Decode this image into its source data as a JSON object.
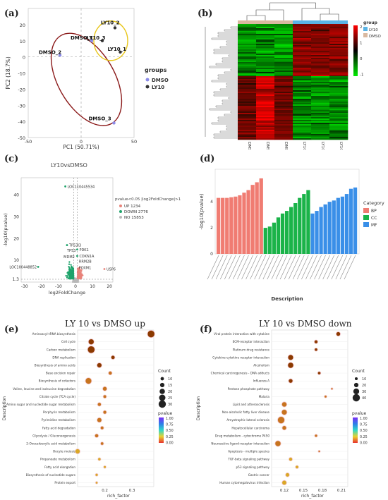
{
  "panels": {
    "a": {
      "label": "(a)",
      "xlabel": "PC1 (50.71%)",
      "ylabel": "PC2 (18.7%)",
      "legend_title": "groups",
      "legend_items": [
        {
          "name": "DMSO",
          "color": "#8b8be8"
        },
        {
          "name": "LY10",
          "color": "#333333"
        }
      ],
      "chart_data": {
        "type": "scatter",
        "xlabel": "PC1 (50.71%)",
        "ylabel": "PC2 (18.7%)",
        "xlim": [
          -50,
          50
        ],
        "ylim": [
          -50,
          30
        ],
        "xticks": [
          "-50",
          "0",
          "50"
        ],
        "yticks": [
          "20",
          "10",
          "0",
          "-10",
          "-20",
          "-30",
          "-40",
          "-50"
        ],
        "points": [
          {
            "label": "LY10_2",
            "x": 32,
            "y": 18,
            "group": "LY10"
          },
          {
            "label": "LY10_3",
            "x": 20,
            "y": 10,
            "group": "LY10"
          },
          {
            "label": "LY10_1",
            "x": 37,
            "y": 3,
            "group": "LY10"
          },
          {
            "label": "DMSO_1",
            "x": 10,
            "y": 10,
            "group": "DMSO"
          },
          {
            "label": "DMSO_2",
            "x": -20,
            "y": 1,
            "group": "DMSO"
          },
          {
            "label": "DMSO_3",
            "x": 31,
            "y": -41,
            "group": "DMSO"
          }
        ]
      }
    },
    "b": {
      "label": "(b)",
      "legend_title": "group",
      "groups": [
        {
          "name": "LY10",
          "color": "#5ab4e5"
        },
        {
          "name": "DMSO",
          "color": "#d9b9a0"
        }
      ],
      "scale_ticks": [
        "2",
        "1",
        "0",
        "-1"
      ],
      "columns": [
        "DMSO_1",
        "DMSO_2",
        "DMSO_3",
        "LY10_1",
        "LY10_2",
        "LY10_3"
      ],
      "chart_data": {
        "type": "heatmap",
        "columns": [
          "DMSO_1",
          "DMSO_2",
          "DMSO_3",
          "LY10_1",
          "LY10_2",
          "LY10_3"
        ],
        "scale": [
          -1,
          2
        ]
      }
    },
    "c": {
      "label": "(c)",
      "title": "LY10vsDMSO",
      "xlabel": "log2FoldChange",
      "ylabel": "-log10(pvalue)",
      "legend_title": "pvalue<0.05 |log2FoldChange|>1",
      "legend_items": [
        {
          "name": "UP 1234",
          "color": "#e8837a"
        },
        {
          "name": "DOWN 2776",
          "color": "#1fa36b"
        },
        {
          "name": "NO 15853",
          "color": "#b8b8b8"
        }
      ],
      "gene_labels": [
        "LOC110445534",
        "TP53I3",
        "TP53",
        "MDM2",
        "PDK1",
        "CDKN1A",
        "LOC100448852",
        "USP6",
        "RRM2B",
        "FOXM1"
      ],
      "chart_data": {
        "type": "scatter",
        "xlabel": "log2FoldChange",
        "ylabel": "-log10(pvalue)",
        "xticks": [
          "-30",
          "-20",
          "-10",
          "0",
          "10",
          "20"
        ],
        "yticks": [
          "1.3",
          "10",
          "20",
          "30",
          "40"
        ],
        "xlim": [
          -32,
          22
        ],
        "ylim": [
          0,
          48
        ],
        "series": [
          {
            "name": "UP 1234",
            "color": "#e8837a"
          },
          {
            "name": "DOWN 2776",
            "color": "#1fa36b"
          },
          {
            "name": "NO 15853",
            "color": "#b8b8b8"
          }
        ],
        "labeled_points": [
          {
            "label": "LOC110445534",
            "x": -6,
            "y": 44
          },
          {
            "label": "LOC100448852",
            "x": -22,
            "y": 7
          },
          {
            "label": "USP6",
            "x": 17,
            "y": 6
          },
          {
            "label": "PDK1",
            "x": 1,
            "y": 15
          },
          {
            "label": "CDKN1A",
            "x": 1,
            "y": 12
          },
          {
            "label": "TP53I3",
            "x": -5,
            "y": 17
          }
        ]
      }
    },
    "d": {
      "label": "(d)",
      "xlabel": "Description",
      "ylabel": "-log10(pvalue)",
      "legend_title": "Category",
      "legend_items": [
        {
          "name": "BP",
          "color": "#f07c72"
        },
        {
          "name": "CC",
          "color": "#1ab349"
        },
        {
          "name": "MF",
          "color": "#3a8fe8"
        }
      ],
      "chart_data": {
        "type": "bar",
        "ylabel": "-log10(pvalue)",
        "xlabel": "Description",
        "yticks": [
          "0",
          "2",
          "4"
        ],
        "ylim": [
          0,
          6.5
        ],
        "series": [
          {
            "name": "BP",
            "values": [
              4.3,
              4.3,
              4.3,
              4.35,
              4.4,
              4.5,
              4.7,
              4.9,
              5.3,
              5.5,
              5.8
            ]
          },
          {
            "name": "CC",
            "values": [
              2.0,
              2.1,
              2.4,
              2.8,
              3.1,
              3.3,
              3.6,
              3.9,
              4.3,
              4.6,
              4.9
            ]
          },
          {
            "name": "MF",
            "values": [
              3.1,
              3.3,
              3.6,
              3.8,
              4.0,
              4.1,
              4.3,
              4.4,
              4.6,
              5.0,
              5.1
            ]
          }
        ]
      }
    },
    "e": {
      "label": "(e)",
      "title": "LY 10 vs DMSO up",
      "xlabel": "rich_factor",
      "ylabel": "Description",
      "count_title": "Count",
      "count_values": [
        "10",
        "15",
        "20",
        "25",
        "30"
      ],
      "pvalue_title": "pvalue",
      "pvalue_ticks": [
        "1.00",
        "0.75",
        "0.50",
        "0.25",
        "0.00"
      ],
      "chart_data": {
        "type": "scatter",
        "xlabel": "rich_factor",
        "ylabel": "Description",
        "xticks": [
          "0.2",
          "0.3"
        ],
        "xlim": [
          0.1,
          0.38
        ],
        "categories": [
          "Aminoacyl-tRNA biosynthesis",
          "Cell cycle",
          "Carbon metabolism",
          "DNA replication",
          "Biosynthesis of amino acids",
          "Base excision repair",
          "Biosynthesis of cofactors",
          "Valine, leucine and isoleucine degradation",
          "Citrate cycle (TCA cycle)",
          "Amino sugar and nucleotide sugar metabolism",
          "Porphyrin metabolism",
          "Pyrimidine metabolism",
          "Fatty acid degradation",
          "Glycolysis / Gluconeogenesis",
          "2-Oxocarboxylic acid metabolism",
          "Oocyte meiosis",
          "Propanoate metabolism",
          "Fatty acid elongation",
          "Biosynthesis of nucleotide sugars",
          "Protein export"
        ],
        "rich_factor": [
          0.37,
          0.15,
          0.15,
          0.23,
          0.18,
          0.22,
          0.14,
          0.2,
          0.2,
          0.18,
          0.2,
          0.18,
          0.19,
          0.17,
          0.19,
          0.1,
          0.18,
          0.2,
          0.17,
          0.17
        ],
        "count": [
          30,
          22,
          30,
          13,
          18,
          12,
          25,
          15,
          10,
          12,
          11,
          17,
          10,
          12,
          9,
          18,
          8,
          6,
          7,
          5
        ],
        "pvalue": [
          0.01,
          0.02,
          0.02,
          0.03,
          0.04,
          0.05,
          0.05,
          0.06,
          0.06,
          0.07,
          0.07,
          0.08,
          0.08,
          0.09,
          0.09,
          0.1,
          0.12,
          0.15,
          0.18,
          0.2
        ]
      }
    },
    "f": {
      "label": "(f)",
      "title": "LY 10 vs DMSO down",
      "xlabel": "rich_factor",
      "ylabel": "Description",
      "count_title": "Count",
      "count_values": [
        "10",
        "20",
        "30",
        "40"
      ],
      "pvalue_title": "pvalue",
      "pvalue_ticks": [
        "1.00",
        "0.75",
        "0.50",
        "0.25",
        "0.00"
      ],
      "chart_data": {
        "type": "scatter",
        "xlabel": "rich_factor",
        "ylabel": "Description",
        "xticks": [
          "0.12",
          "0.15",
          "0.18",
          "0.21"
        ],
        "xlim": [
          0.1,
          0.22
        ],
        "categories": [
          "Viral protein interaction with cytokine",
          "ECM-receptor interaction",
          "Platinum drug resistance",
          "Cytokine-cytokine receptor interaction",
          "Alcoholism",
          "Chemical carcinogenesis - DNA adducts",
          "Influenza A",
          "Pentose phosphate pathway",
          "Malaria",
          "Lipid and atherosclerosis",
          "Non-alcoholic fatty liver disease",
          "Amyotrophic lateral sclerosis",
          "Hepatocellular carcinoma",
          "Drug metabolism - cytochrome P450",
          "Neuroactive ligand-receptor interaction",
          "Apoptosis - multiple species",
          "TGF-beta signaling pathway",
          "p53 signaling pathway",
          "Gastric cancer",
          "Human cytomegalovirus infection"
        ],
        "rich_factor": [
          0.205,
          0.17,
          0.17,
          0.13,
          0.13,
          0.175,
          0.13,
          0.195,
          0.185,
          0.12,
          0.12,
          0.115,
          0.12,
          0.17,
          0.11,
          0.175,
          0.13,
          0.14,
          0.125,
          0.12
        ],
        "count": [
          20,
          15,
          12,
          28,
          30,
          12,
          20,
          5,
          8,
          25,
          28,
          38,
          20,
          10,
          30,
          5,
          15,
          12,
          18,
          22
        ],
        "pvalue": [
          0.01,
          0.02,
          0.02,
          0.03,
          0.03,
          0.04,
          0.04,
          0.05,
          0.05,
          0.06,
          0.06,
          0.07,
          0.07,
          0.08,
          0.08,
          0.09,
          0.1,
          0.12,
          0.15,
          0.18
        ]
      }
    }
  }
}
